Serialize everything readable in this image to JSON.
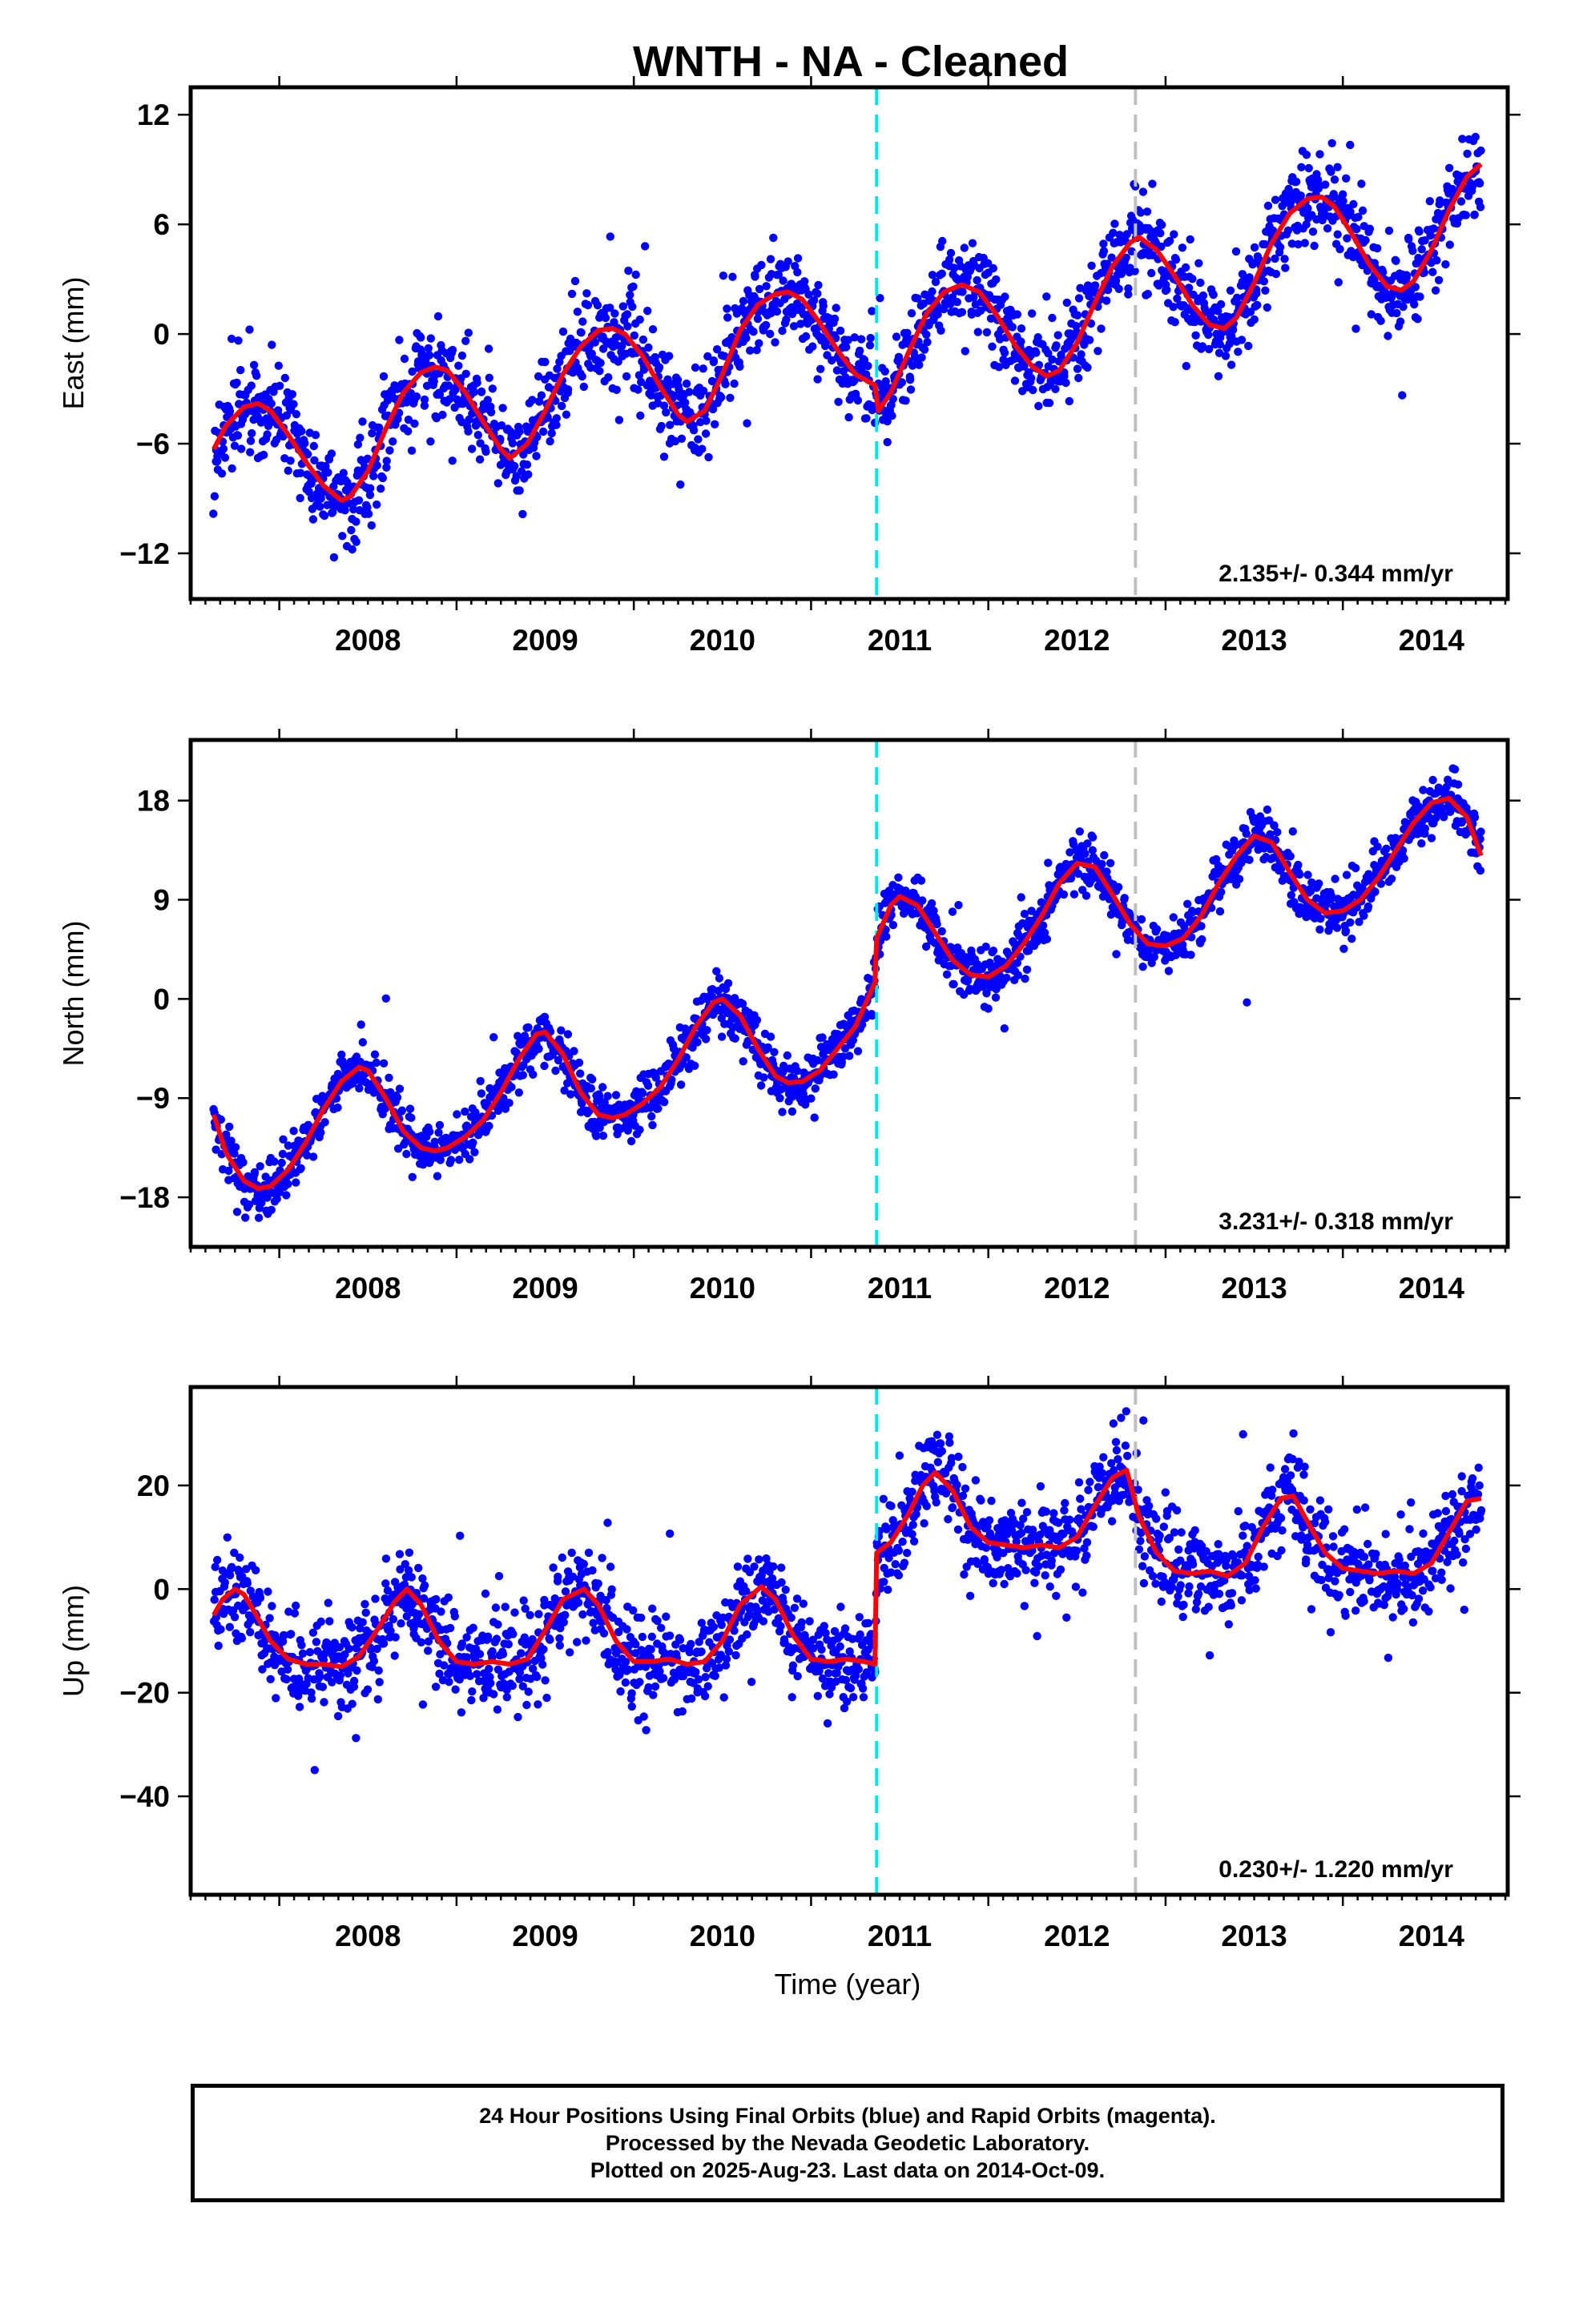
{
  "title": "WNTH  - NA - Cleaned",
  "footer": {
    "line1": "24 Hour Positions Using Final Orbits (blue) and Rapid Orbits (magenta).",
    "line2": "Processed by the Nevada Geodetic Laboratory.",
    "line3": "Plotted on 2025-Aug-23. Last data on 2014-Oct-09."
  },
  "colors": {
    "points": "#0000ff",
    "model": "#ff0000",
    "antenna_change": "#00e5ee",
    "event": "#c0c0c0"
  },
  "chart_data": [
    {
      "type": "scatter",
      "component": "east",
      "ylabel": "East (mm)",
      "xlabel": "",
      "xlim": [
        2007.5,
        2014.93
      ],
      "ylim": [
        -14.5,
        13.5
      ],
      "xticks": [
        2008,
        2009,
        2010,
        2011,
        2012,
        2013,
        2014
      ],
      "yticks": [
        -12,
        -6,
        0,
        6,
        12
      ],
      "rate_label": "2.135+/- 0.344 mm/yr",
      "vlines": [
        {
          "x": 2011.37,
          "style": "cyan-dashed"
        },
        {
          "x": 2012.83,
          "style": "gray-dashed"
        }
      ],
      "model_x": [
        2007.63,
        2007.7,
        2007.8,
        2007.88,
        2007.95,
        2008.05,
        2008.15,
        2008.25,
        2008.35,
        2008.4,
        2008.5,
        2008.6,
        2008.7,
        2008.8,
        2008.88,
        2008.95,
        2009.05,
        2009.15,
        2009.25,
        2009.3,
        2009.4,
        2009.5,
        2009.6,
        2009.7,
        2009.8,
        2009.88,
        2009.95,
        2010.05,
        2010.15,
        2010.25,
        2010.3,
        2010.4,
        2010.5,
        2010.6,
        2010.7,
        2010.8,
        2010.87,
        2010.95,
        2011.05,
        2011.15,
        2011.25,
        2011.36,
        2011.38,
        2011.45,
        2011.55,
        2011.65,
        2011.75,
        2011.85,
        2011.95,
        2012.05,
        2012.15,
        2012.25,
        2012.33,
        2012.4,
        2012.5,
        2012.6,
        2012.7,
        2012.8,
        2012.85,
        2012.95,
        2013.05,
        2013.15,
        2013.25,
        2013.33,
        2013.4,
        2013.5,
        2013.6,
        2013.7,
        2013.8,
        2013.88,
        2013.95,
        2014.05,
        2014.15,
        2014.25,
        2014.33,
        2014.4,
        2014.5,
        2014.6,
        2014.7,
        2014.78
      ],
      "model_y": [
        -6.3,
        -5.0,
        -4.0,
        -3.8,
        -4.2,
        -5.5,
        -7.0,
        -8.3,
        -9.1,
        -8.9,
        -7.5,
        -5.2,
        -3.2,
        -2.1,
        -1.8,
        -2.0,
        -3.2,
        -4.8,
        -6.3,
        -6.8,
        -6.0,
        -4.2,
        -2.2,
        -0.7,
        0.2,
        0.3,
        0.0,
        -1.2,
        -2.9,
        -4.4,
        -4.8,
        -4.2,
        -2.2,
        0.2,
        1.6,
        2.2,
        2.3,
        1.9,
        0.6,
        -0.9,
        -2.2,
        -2.8,
        -4.2,
        -3.2,
        -1.0,
        1.1,
        2.3,
        2.7,
        2.3,
        1.0,
        -0.6,
        -1.8,
        -2.3,
        -2.0,
        -0.5,
        1.7,
        3.7,
        5.0,
        5.3,
        4.6,
        3.2,
        1.6,
        0.5,
        0.3,
        0.9,
        2.8,
        5.0,
        6.6,
        7.4,
        7.5,
        7.0,
        5.5,
        3.8,
        2.6,
        2.4,
        2.9,
        4.6,
        6.8,
        8.6,
        9.3
      ],
      "scatter_spread": 1.6
    },
    {
      "type": "scatter",
      "component": "north",
      "ylabel": "North (mm)",
      "xlabel": "",
      "xlim": [
        2007.5,
        2014.93
      ],
      "ylim": [
        -22.5,
        23.5
      ],
      "xticks": [
        2008,
        2009,
        2010,
        2011,
        2012,
        2013,
        2014
      ],
      "yticks": [
        -18,
        -9,
        0,
        9,
        18
      ],
      "rate_label": "3.231+/- 0.318 mm/yr",
      "vlines": [
        {
          "x": 2011.37,
          "style": "cyan-dashed"
        },
        {
          "x": 2012.83,
          "style": "gray-dashed"
        }
      ],
      "model_x": [
        2007.63,
        2007.7,
        2007.8,
        2007.88,
        2007.95,
        2008.05,
        2008.15,
        2008.25,
        2008.35,
        2008.45,
        2008.5,
        2008.6,
        2008.7,
        2008.8,
        2008.88,
        2008.95,
        2009.05,
        2009.15,
        2009.25,
        2009.35,
        2009.45,
        2009.5,
        2009.6,
        2009.7,
        2009.8,
        2009.88,
        2009.95,
        2010.05,
        2010.15,
        2010.25,
        2010.35,
        2010.45,
        2010.5,
        2010.6,
        2010.7,
        2010.8,
        2010.87,
        2010.95,
        2011.05,
        2011.15,
        2011.25,
        2011.36,
        2011.37,
        2011.45,
        2011.5,
        2011.6,
        2011.7,
        2011.8,
        2011.9,
        2012.0,
        2012.1,
        2012.2,
        2012.3,
        2012.4,
        2012.5,
        2012.6,
        2012.7,
        2012.8,
        2012.9,
        2013.0,
        2013.1,
        2013.2,
        2013.3,
        2013.4,
        2013.5,
        2013.6,
        2013.7,
        2013.8,
        2013.9,
        2014.0,
        2014.1,
        2014.2,
        2014.3,
        2014.4,
        2014.5,
        2014.6,
        2014.7,
        2014.78
      ],
      "model_y": [
        -10.5,
        -14.0,
        -16.5,
        -17.2,
        -17.0,
        -15.5,
        -13.0,
        -10.0,
        -7.5,
        -6.2,
        -6.5,
        -9.0,
        -12.0,
        -13.5,
        -13.8,
        -13.5,
        -12.5,
        -11.0,
        -8.5,
        -5.5,
        -3.2,
        -3.0,
        -5.0,
        -8.5,
        -10.5,
        -10.8,
        -10.5,
        -9.5,
        -8.0,
        -5.5,
        -2.5,
        -0.3,
        0.0,
        -1.5,
        -4.5,
        -7.0,
        -7.6,
        -7.5,
        -6.5,
        -4.5,
        -2.5,
        1.5,
        5.5,
        8.5,
        9.3,
        8.5,
        6.0,
        3.5,
        2.2,
        2.0,
        3.0,
        5.0,
        7.5,
        10.5,
        12.3,
        12.0,
        9.5,
        6.8,
        5.0,
        4.8,
        5.5,
        7.5,
        10.5,
        13.0,
        14.8,
        14.2,
        11.5,
        9.0,
        7.8,
        8.0,
        9.0,
        11.0,
        13.5,
        16.0,
        17.8,
        18.2,
        16.5,
        13.0
      ],
      "scatter_spread": 1.5
    },
    {
      "type": "scatter",
      "component": "up",
      "ylabel": "Up (mm)",
      "xlabel": "Time (year)",
      "xlim": [
        2007.5,
        2014.93
      ],
      "ylim": [
        -59,
        39
      ],
      "xticks": [
        2008,
        2009,
        2010,
        2011,
        2012,
        2013,
        2014
      ],
      "yticks": [
        -40,
        -20,
        0,
        20
      ],
      "rate_label": "0.230+/- 1.220 mm/yr",
      "vlines": [
        {
          "x": 2011.37,
          "style": "cyan-dashed"
        },
        {
          "x": 2012.83,
          "style": "gray-dashed"
        }
      ],
      "model_x": [
        2007.63,
        2007.68,
        2007.75,
        2007.8,
        2007.87,
        2007.95,
        2008.05,
        2008.15,
        2008.25,
        2008.35,
        2008.45,
        2008.55,
        2008.65,
        2008.72,
        2008.8,
        2008.9,
        2009.0,
        2009.1,
        2009.2,
        2009.3,
        2009.4,
        2009.5,
        2009.6,
        2009.72,
        2009.8,
        2009.9,
        2010.0,
        2010.1,
        2010.2,
        2010.3,
        2010.4,
        2010.5,
        2010.6,
        2010.72,
        2010.8,
        2010.9,
        2011.0,
        2011.1,
        2011.2,
        2011.3,
        2011.36,
        2011.37,
        2011.45,
        2011.55,
        2011.63,
        2011.7,
        2011.8,
        2011.9,
        2012.0,
        2012.1,
        2012.2,
        2012.3,
        2012.4,
        2012.5,
        2012.6,
        2012.7,
        2012.78,
        2012.85,
        2012.95,
        2013.05,
        2013.15,
        2013.25,
        2013.35,
        2013.45,
        2013.55,
        2013.65,
        2013.72,
        2013.8,
        2013.9,
        2014.0,
        2014.1,
        2014.2,
        2014.3,
        2014.4,
        2014.5,
        2014.6,
        2014.7,
        2014.78
      ],
      "model_y": [
        -5.0,
        -2.0,
        0.0,
        -1.0,
        -5.0,
        -10.0,
        -13.5,
        -14.5,
        -14.5,
        -15.0,
        -13.0,
        -8.0,
        -2.5,
        0.0,
        -3.0,
        -10.0,
        -14.0,
        -14.5,
        -14.0,
        -14.5,
        -13.5,
        -8.0,
        -2.0,
        0.0,
        -3.0,
        -10.0,
        -14.0,
        -14.0,
        -13.5,
        -14.5,
        -14.0,
        -10.0,
        -3.0,
        0.5,
        -2.0,
        -9.0,
        -13.5,
        -14.0,
        -13.5,
        -14.0,
        -14.5,
        7.0,
        9.0,
        14.5,
        20.0,
        22.5,
        19.0,
        12.0,
        9.0,
        8.5,
        8.0,
        8.5,
        8.0,
        10.0,
        16.0,
        21.5,
        23.0,
        14.0,
        7.0,
        3.5,
        3.0,
        3.5,
        2.5,
        5.0,
        12.0,
        17.5,
        18.0,
        13.0,
        7.0,
        4.0,
        3.5,
        3.0,
        3.5,
        3.0,
        5.0,
        11.0,
        17.0,
        17.5
      ],
      "scatter_spread": 5.5
    }
  ]
}
